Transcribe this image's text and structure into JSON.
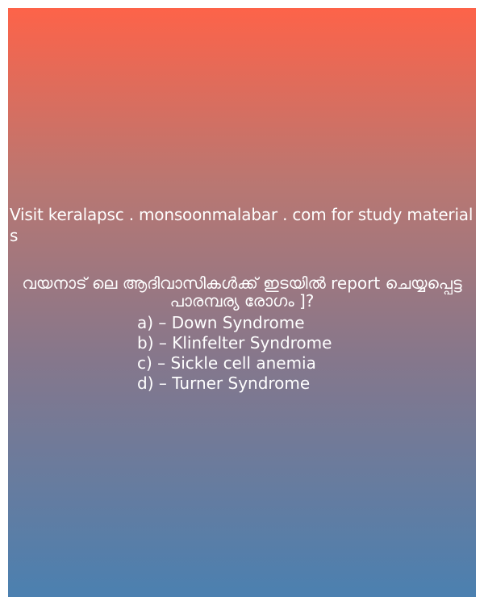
{
  "banner": {
    "site_text": "Visit keralapsc . monsoonmalabar . com for study materials"
  },
  "quiz": {
    "question": "വയനാട് ലെ ആദിവാസികൾക്ക് ഇടയിൽ report ചെയ്യപ്പെട്ട പാരമ്പര്യ രോഗം ]?",
    "options": [
      "a) – Down Syndrome",
      "b) – Klinfelter Syndrome",
      "c) – Sickle cell anemia",
      "d) – Turner Syndrome"
    ]
  },
  "colors": {
    "gradient_top": "#fd6349",
    "gradient_bottom": "#4b80b0",
    "text": "#ffffff"
  }
}
